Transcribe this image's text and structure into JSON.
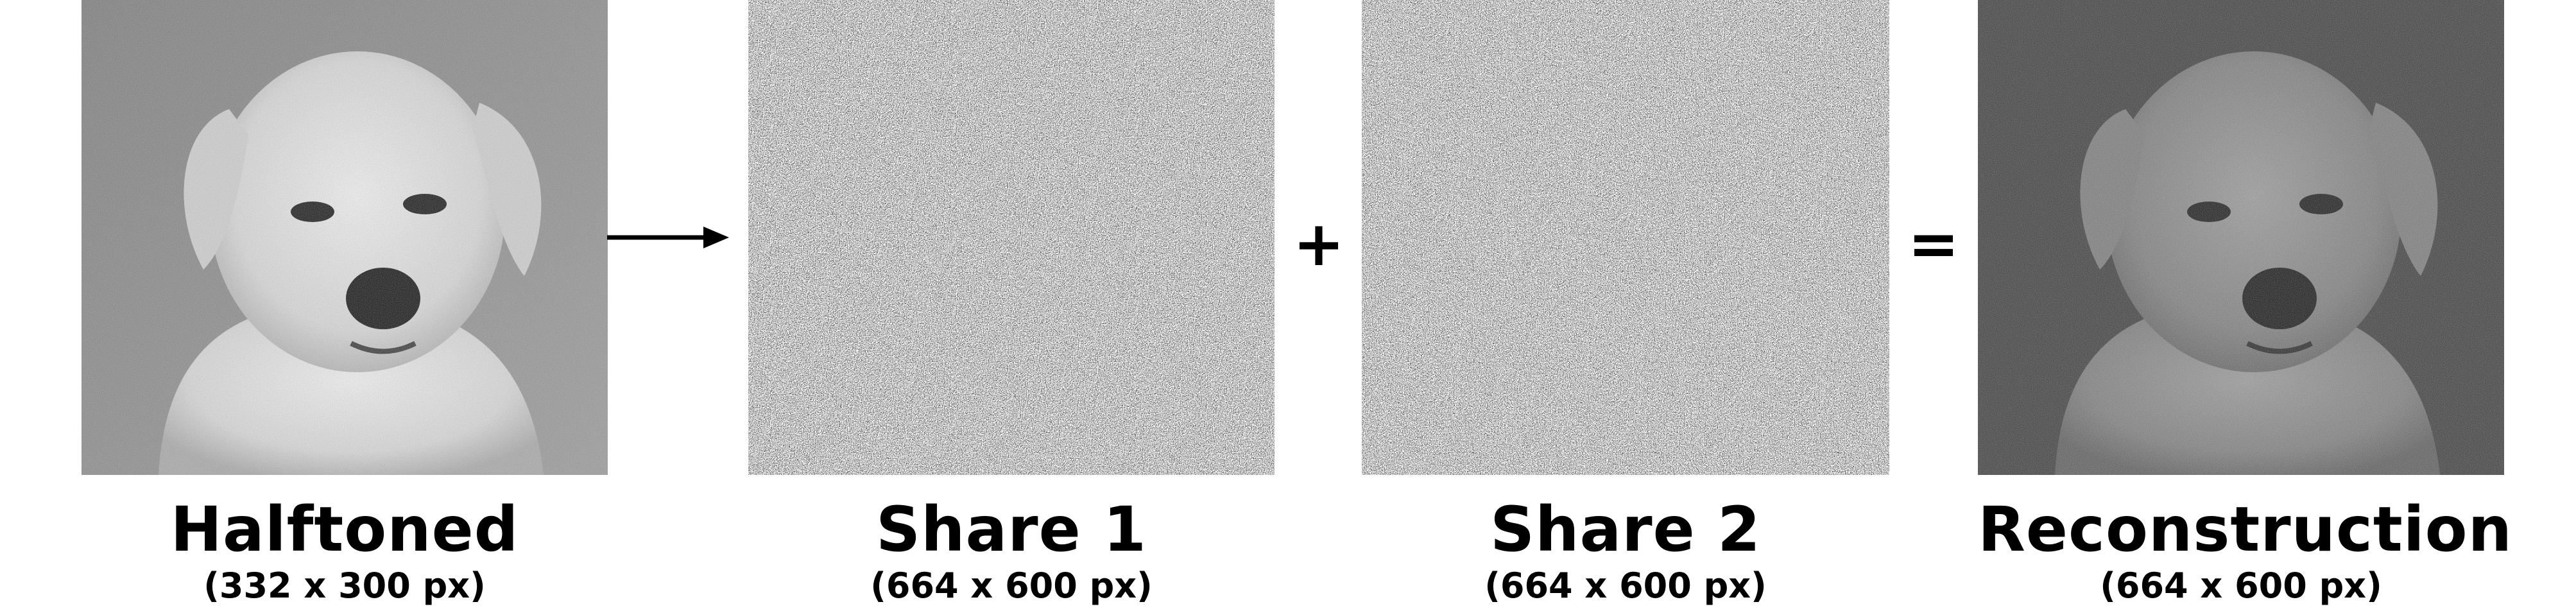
{
  "panels": [
    {
      "id": "halftoned",
      "title": "Halftoned",
      "size": "(332 x 300 px)"
    },
    {
      "id": "share1",
      "title": "Share 1",
      "size": "(664 x 600 px)"
    },
    {
      "id": "share2",
      "title": "Share 2",
      "size": "(664 x 600 px)"
    },
    {
      "id": "reconstruction",
      "title": "Reconstruction",
      "size": "(664 x 600 px)"
    }
  ],
  "operators": {
    "plus": "+",
    "equals": "="
  },
  "colors": {
    "ink": "#000000",
    "background": "#ffffff",
    "noise_gray": "#8a8a8a",
    "reconstruction_bg": "#3c3c3c"
  }
}
